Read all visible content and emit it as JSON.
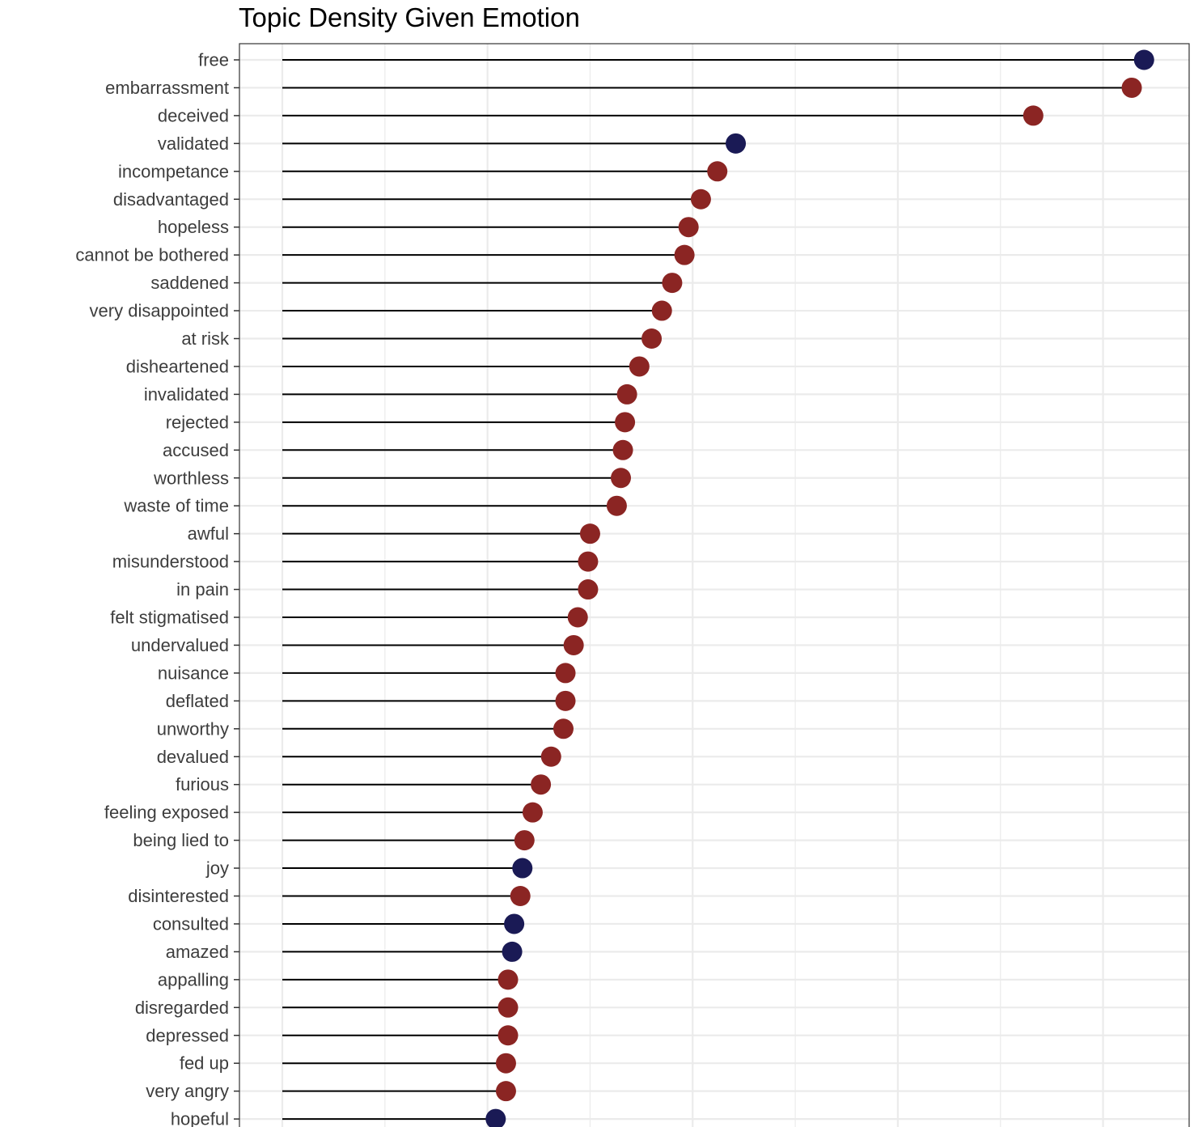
{
  "chart_data": {
    "type": "lollipop",
    "title": "Topic Density Given Emotion",
    "xlabel": "",
    "ylabel": "",
    "xlim": [
      0,
      0.44
    ],
    "grid": true,
    "legend": "none",
    "colors": {
      "positive": "#1a1a55",
      "negative": "#8b2523",
      "stem": "#000000",
      "grid": "#ebebeb",
      "axis_text": "#3d3d3d"
    },
    "categories": [
      "free",
      "embarrassment",
      "deceived",
      "validated",
      "incompetance",
      "disadvantaged",
      "hopeless",
      "cannot be bothered",
      "saddened",
      "very disappointed",
      "at risk",
      "disheartened",
      "invalidated",
      "rejected",
      "accused",
      "worthless",
      "waste of time",
      "awful",
      "misunderstood",
      "in pain",
      "felt stigmatised",
      "undervalued",
      "nuisance",
      "deflated",
      "unworthy",
      "devalued",
      "furious",
      "feeling exposed",
      "being lied to",
      "joy",
      "disinterested",
      "consulted",
      "amazed",
      "appalling",
      "disregarded",
      "depressed",
      "fed up",
      "very angry",
      "hopeful"
    ],
    "values": [
      0.42,
      0.414,
      0.366,
      0.221,
      0.212,
      0.204,
      0.198,
      0.196,
      0.19,
      0.185,
      0.18,
      0.174,
      0.168,
      0.167,
      0.166,
      0.165,
      0.163,
      0.15,
      0.149,
      0.149,
      0.144,
      0.142,
      0.138,
      0.138,
      0.137,
      0.131,
      0.126,
      0.122,
      0.118,
      0.117,
      0.116,
      0.113,
      0.112,
      0.11,
      0.11,
      0.11,
      0.109,
      0.109,
      0.104
    ],
    "sentiment": [
      "positive",
      "negative",
      "negative",
      "positive",
      "negative",
      "negative",
      "negative",
      "negative",
      "negative",
      "negative",
      "negative",
      "negative",
      "negative",
      "negative",
      "negative",
      "negative",
      "negative",
      "negative",
      "negative",
      "negative",
      "negative",
      "negative",
      "negative",
      "negative",
      "negative",
      "negative",
      "negative",
      "negative",
      "negative",
      "positive",
      "negative",
      "positive",
      "positive",
      "negative",
      "negative",
      "negative",
      "negative",
      "negative",
      "positive"
    ]
  }
}
